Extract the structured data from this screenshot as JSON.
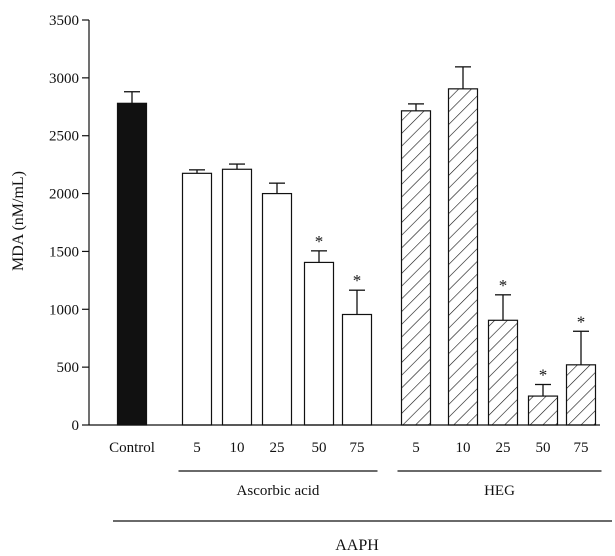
{
  "chart_data": {
    "type": "bar",
    "title": "",
    "ylabel": "MDA (nM/mL)",
    "xlabel": "AAPH",
    "ylim": [
      0,
      3500
    ],
    "yticks": [
      0,
      500,
      1000,
      1500,
      2000,
      2500,
      3000,
      3500
    ],
    "categories": [
      "Control",
      "5",
      "10",
      "25",
      "50",
      "75",
      "5",
      "10",
      "25",
      "50",
      "75"
    ],
    "groups": [
      {
        "label": "Ascorbic acid",
        "members": [
          1,
          2,
          3,
          4,
          5
        ]
      },
      {
        "label": "HEG",
        "members": [
          6,
          7,
          8,
          9,
          10
        ]
      }
    ],
    "values": [
      2780,
      2175,
      2210,
      2000,
      1405,
      955,
      2715,
      2905,
      905,
      250,
      520
    ],
    "errors": [
      100,
      30,
      45,
      90,
      100,
      210,
      60,
      190,
      220,
      100,
      290
    ],
    "significant": [
      false,
      false,
      false,
      false,
      true,
      true,
      false,
      false,
      true,
      true,
      true
    ],
    "significance_mark": "*",
    "fills": [
      "solid-black",
      "white",
      "white",
      "white",
      "white",
      "white",
      "hatched",
      "hatched",
      "hatched",
      "hatched",
      "hatched"
    ],
    "colors": {
      "control": "#111111",
      "outline": "#111111",
      "background": "#ffffff"
    }
  }
}
